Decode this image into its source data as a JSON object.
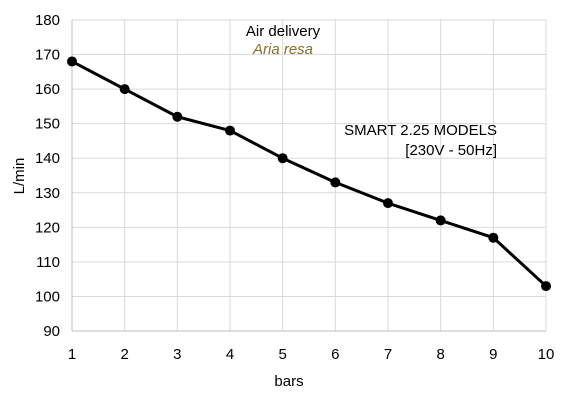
{
  "colors": {
    "line": "#000000",
    "grid": "#d9d9d9",
    "axis": "#bfbfbf",
    "subtitle": "#8a6d2b"
  },
  "chart_data": {
    "type": "line",
    "title": "Air delivery",
    "subtitle": "Aria resa",
    "xlabel": "bars",
    "ylabel": "L/min",
    "x": [
      1,
      2,
      3,
      4,
      5,
      6,
      7,
      8,
      9,
      10
    ],
    "series": [
      {
        "values": [
          168,
          160,
          152,
          148,
          140,
          133,
          127,
          122,
          117,
          103
        ]
      }
    ],
    "xlim": [
      1,
      10
    ],
    "ylim": [
      90,
      180
    ],
    "y_ticks": [
      90,
      100,
      110,
      120,
      130,
      140,
      150,
      160,
      170,
      180
    ],
    "x_ticks": [
      1,
      2,
      3,
      4,
      5,
      6,
      7,
      8,
      9,
      10
    ],
    "grid": true,
    "annotation_line1": "SMART 2.25 MODELS",
    "annotation_line2": "[230V - 50Hz]"
  }
}
